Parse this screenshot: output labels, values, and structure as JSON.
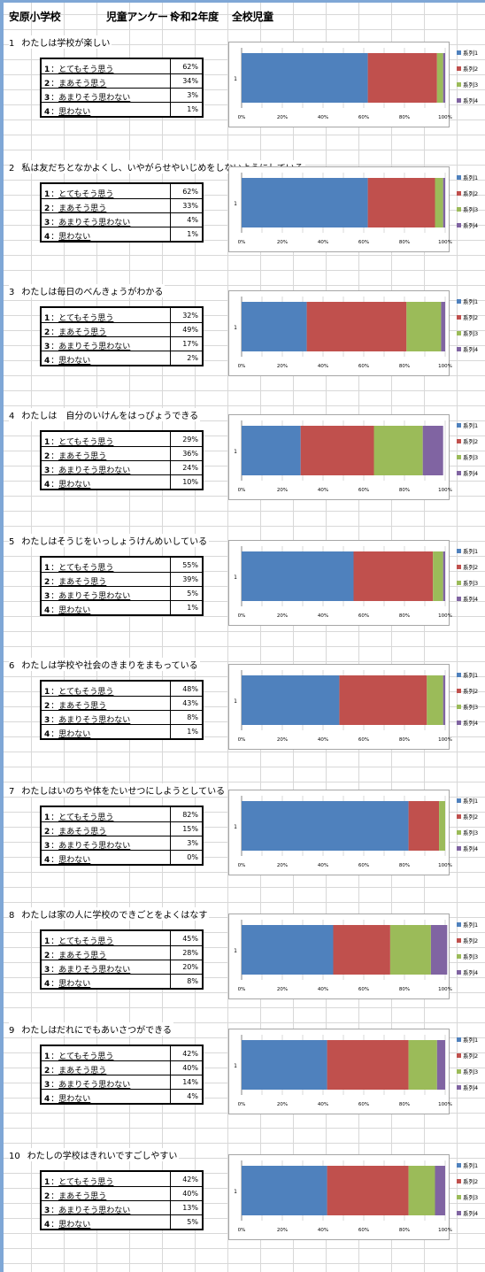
{
  "header": {
    "school": "安原小学校",
    "survey": "児童アンケート",
    "year": "令和2年度",
    "scope": "全校児童"
  },
  "options": [
    {
      "num": "1",
      "sep": "：",
      "label": "とてもそう思う"
    },
    {
      "num": "2",
      "sep": "：",
      "label": "まあそう思う"
    },
    {
      "num": "3",
      "sep": "：",
      "label": "あまりそう思わない"
    },
    {
      "num": "4",
      "sep": "：",
      "label": "思わない"
    }
  ],
  "questions": [
    {
      "num": "1",
      "title": "わたしは学校が楽しい",
      "pcts": [
        "62%",
        "34%",
        "3%",
        "1%"
      ]
    },
    {
      "num": "2",
      "title": "私は友だちとなかよくし、いやがらせやいじめをしないようにしている",
      "pcts": [
        "62%",
        "33%",
        "4%",
        "1%"
      ]
    },
    {
      "num": "3",
      "title": "わたしは毎日のべんきょうがわかる",
      "pcts": [
        "32%",
        "49%",
        "17%",
        "2%"
      ]
    },
    {
      "num": "4",
      "title": "わたしは　自分のいけんをはっぴょうできる",
      "pcts": [
        "29%",
        "36%",
        "24%",
        "10%"
      ]
    },
    {
      "num": "5",
      "title": "わたしはそうじをいっしょうけんめいしている",
      "pcts": [
        "55%",
        "39%",
        "5%",
        "1%"
      ]
    },
    {
      "num": "6",
      "title": "わたしは学校や社会のきまりをまもっている",
      "pcts": [
        "48%",
        "43%",
        "8%",
        "1%"
      ]
    },
    {
      "num": "7",
      "title": "わたしはいのちや体をたいせつにしようとしている",
      "pcts": [
        "82%",
        "15%",
        "3%",
        "0%"
      ]
    },
    {
      "num": "8",
      "title": "わたしは家の人に学校のできごとをよくはなす",
      "pcts": [
        "45%",
        "28%",
        "20%",
        "8%"
      ]
    },
    {
      "num": "9",
      "title": "わたしはだれにでもあいさつができる",
      "pcts": [
        "42%",
        "40%",
        "14%",
        "4%"
      ]
    },
    {
      "num": "10",
      "title": "わたしの学校はきれいですごしやすい",
      "pcts": [
        "42%",
        "40%",
        "13%",
        "5%"
      ]
    }
  ],
  "colors": {
    "series": [
      "#4f81bd",
      "#c0504d",
      "#9bbb59",
      "#8064a2"
    ],
    "grid_rule": "#7fa7d6"
  },
  "chart_data": [
    {
      "type": "bar",
      "orientation": "horizontal",
      "stacked": true,
      "normalized": true,
      "categories": [
        "1"
      ],
      "xlim": [
        0,
        100
      ],
      "x_ticks": [
        "0%",
        "20%",
        "40%",
        "60%",
        "80%",
        "100%"
      ],
      "legend_position": "right",
      "grid": true,
      "series": [
        {
          "name": "系列1",
          "values": [
            62
          ]
        },
        {
          "name": "系列2",
          "values": [
            34
          ]
        },
        {
          "name": "系列3",
          "values": [
            3
          ]
        },
        {
          "name": "系列4",
          "values": [
            1
          ]
        }
      ]
    },
    {
      "type": "bar",
      "orientation": "horizontal",
      "stacked": true,
      "normalized": true,
      "categories": [
        "1"
      ],
      "xlim": [
        0,
        100
      ],
      "x_ticks": [
        "0%",
        "20%",
        "40%",
        "60%",
        "80%",
        "100%"
      ],
      "legend_position": "right",
      "grid": true,
      "series": [
        {
          "name": "系列1",
          "values": [
            62
          ]
        },
        {
          "name": "系列2",
          "values": [
            33
          ]
        },
        {
          "name": "系列3",
          "values": [
            4
          ]
        },
        {
          "name": "系列4",
          "values": [
            1
          ]
        }
      ]
    },
    {
      "type": "bar",
      "orientation": "horizontal",
      "stacked": true,
      "normalized": true,
      "categories": [
        "1"
      ],
      "xlim": [
        0,
        100
      ],
      "x_ticks": [
        "0%",
        "20%",
        "40%",
        "60%",
        "80%",
        "100%"
      ],
      "legend_position": "right",
      "grid": true,
      "series": [
        {
          "name": "系列1",
          "values": [
            32
          ]
        },
        {
          "name": "系列2",
          "values": [
            49
          ]
        },
        {
          "name": "系列3",
          "values": [
            17
          ]
        },
        {
          "name": "系列4",
          "values": [
            2
          ]
        }
      ]
    },
    {
      "type": "bar",
      "orientation": "horizontal",
      "stacked": true,
      "normalized": true,
      "categories": [
        "1"
      ],
      "xlim": [
        0,
        100
      ],
      "x_ticks": [
        "0%",
        "20%",
        "40%",
        "60%",
        "80%",
        "100%"
      ],
      "legend_position": "right",
      "grid": true,
      "series": [
        {
          "name": "系列1",
          "values": [
            29
          ]
        },
        {
          "name": "系列2",
          "values": [
            36
          ]
        },
        {
          "name": "系列3",
          "values": [
            24
          ]
        },
        {
          "name": "系列4",
          "values": [
            10
          ]
        }
      ]
    },
    {
      "type": "bar",
      "orientation": "horizontal",
      "stacked": true,
      "normalized": true,
      "categories": [
        "1"
      ],
      "xlim": [
        0,
        100
      ],
      "x_ticks": [
        "0%",
        "20%",
        "40%",
        "60%",
        "80%",
        "100%"
      ],
      "legend_position": "right",
      "grid": true,
      "series": [
        {
          "name": "系列1",
          "values": [
            55
          ]
        },
        {
          "name": "系列2",
          "values": [
            39
          ]
        },
        {
          "name": "系列3",
          "values": [
            5
          ]
        },
        {
          "name": "系列4",
          "values": [
            1
          ]
        }
      ]
    },
    {
      "type": "bar",
      "orientation": "horizontal",
      "stacked": true,
      "normalized": true,
      "categories": [
        "1"
      ],
      "xlim": [
        0,
        100
      ],
      "x_ticks": [
        "0%",
        "20%",
        "40%",
        "60%",
        "80%",
        "100%"
      ],
      "legend_position": "right",
      "grid": true,
      "series": [
        {
          "name": "系列1",
          "values": [
            48
          ]
        },
        {
          "name": "系列2",
          "values": [
            43
          ]
        },
        {
          "name": "系列3",
          "values": [
            8
          ]
        },
        {
          "name": "系列4",
          "values": [
            1
          ]
        }
      ]
    },
    {
      "type": "bar",
      "orientation": "horizontal",
      "stacked": true,
      "normalized": true,
      "categories": [
        "1"
      ],
      "xlim": [
        0,
        100
      ],
      "x_ticks": [
        "0%",
        "20%",
        "40%",
        "60%",
        "80%",
        "100%"
      ],
      "legend_position": "right",
      "grid": true,
      "series": [
        {
          "name": "系列1",
          "values": [
            82
          ]
        },
        {
          "name": "系列2",
          "values": [
            15
          ]
        },
        {
          "name": "系列3",
          "values": [
            3
          ]
        },
        {
          "name": "系列4",
          "values": [
            0
          ]
        }
      ]
    },
    {
      "type": "bar",
      "orientation": "horizontal",
      "stacked": true,
      "normalized": true,
      "categories": [
        "1"
      ],
      "xlim": [
        0,
        100
      ],
      "x_ticks": [
        "0%",
        "20%",
        "40%",
        "60%",
        "80%",
        "100%"
      ],
      "legend_position": "right",
      "grid": true,
      "series": [
        {
          "name": "系列1",
          "values": [
            45
          ]
        },
        {
          "name": "系列2",
          "values": [
            28
          ]
        },
        {
          "name": "系列3",
          "values": [
            20
          ]
        },
        {
          "name": "系列4",
          "values": [
            8
          ]
        }
      ]
    },
    {
      "type": "bar",
      "orientation": "horizontal",
      "stacked": true,
      "normalized": true,
      "categories": [
        "1"
      ],
      "xlim": [
        0,
        100
      ],
      "x_ticks": [
        "0%",
        "20%",
        "40%",
        "60%",
        "80%",
        "100%"
      ],
      "legend_position": "right",
      "grid": true,
      "series": [
        {
          "name": "系列1",
          "values": [
            42
          ]
        },
        {
          "name": "系列2",
          "values": [
            40
          ]
        },
        {
          "name": "系列3",
          "values": [
            14
          ]
        },
        {
          "name": "系列4",
          "values": [
            4
          ]
        }
      ]
    },
    {
      "type": "bar",
      "orientation": "horizontal",
      "stacked": true,
      "normalized": true,
      "categories": [
        "1"
      ],
      "xlim": [
        0,
        100
      ],
      "x_ticks": [
        "0%",
        "20%",
        "40%",
        "60%",
        "80%",
        "100%"
      ],
      "legend_position": "right",
      "grid": true,
      "series": [
        {
          "name": "系列1",
          "values": [
            42
          ]
        },
        {
          "name": "系列2",
          "values": [
            40
          ]
        },
        {
          "name": "系列3",
          "values": [
            13
          ]
        },
        {
          "name": "系列4",
          "values": [
            5
          ]
        }
      ]
    }
  ]
}
